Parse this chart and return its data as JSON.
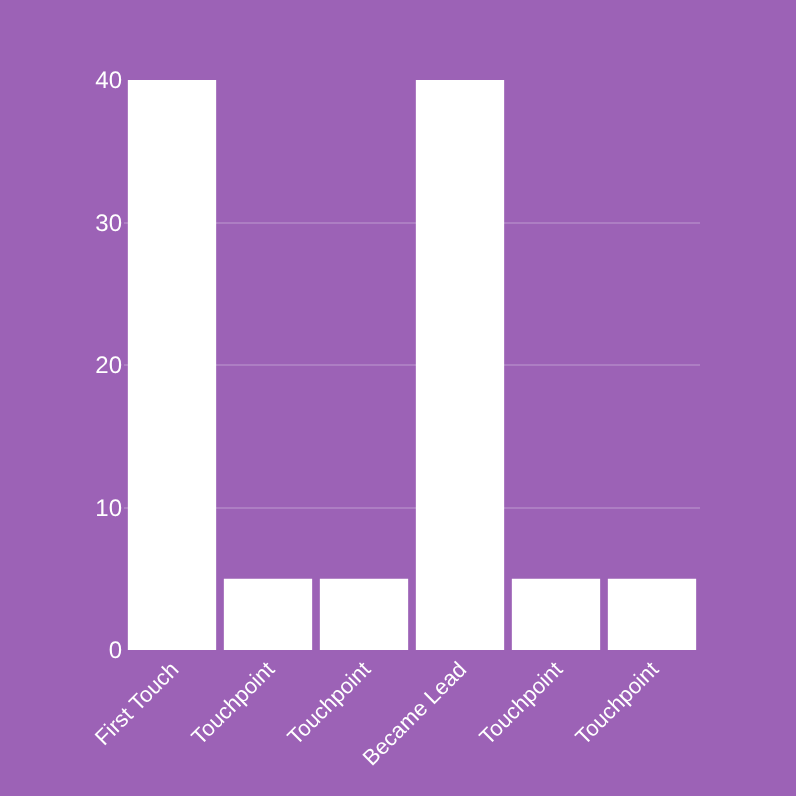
{
  "chart_data": {
    "type": "bar",
    "categories": [
      "First Touch",
      "Touchpoint",
      "Touchpoint",
      "Became Lead",
      "Touchpoint",
      "Touchpoint"
    ],
    "values": [
      40,
      5,
      5,
      40,
      5,
      5
    ],
    "color": "#ffffff",
    "ylim": [
      0,
      40
    ],
    "yticks": [
      0,
      10,
      20,
      30,
      40
    ],
    "grid": "y"
  }
}
